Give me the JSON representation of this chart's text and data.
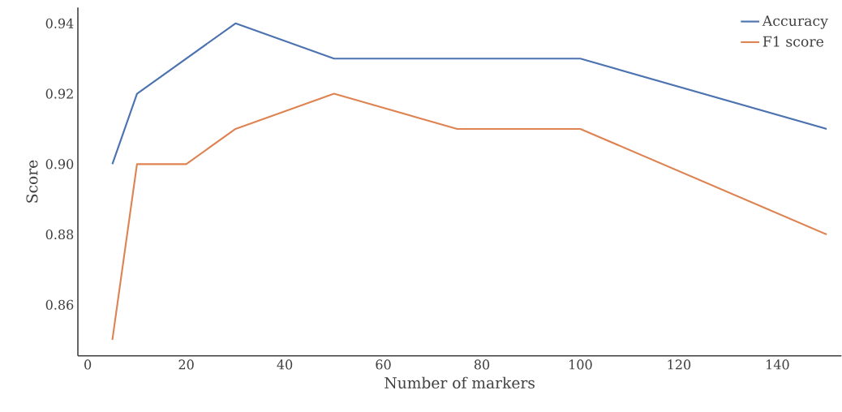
{
  "chart_data": {
    "type": "line",
    "xlabel": "Number of markers",
    "ylabel": "Score",
    "x": [
      5,
      10,
      20,
      30,
      50,
      75,
      100,
      150
    ],
    "series": [
      {
        "name": "Accuracy",
        "color": "#4c72b0",
        "values": [
          0.9,
          0.92,
          0.93,
          0.94,
          0.93,
          0.93,
          0.93,
          0.91
        ]
      },
      {
        "name": "F1 score",
        "color": "#dd8452",
        "values": [
          0.85,
          0.9,
          0.9,
          0.91,
          0.92,
          0.91,
          0.91,
          0.88
        ]
      }
    ],
    "xlim": [
      -2,
      153
    ],
    "xticks": [
      0,
      20,
      40,
      60,
      80,
      100,
      120,
      140
    ],
    "ylim": [
      0.8455,
      0.9445
    ],
    "yticks": [
      {
        "value": 0.86,
        "label": "0.86"
      },
      {
        "value": 0.88,
        "label": "0.88"
      },
      {
        "value": 0.9,
        "label": "0.90"
      },
      {
        "value": 0.92,
        "label": "0.92"
      },
      {
        "value": 0.94,
        "label": "0.94"
      }
    ],
    "grid": false,
    "legend": "top right",
    "marker": "none",
    "line_style": "solid"
  }
}
